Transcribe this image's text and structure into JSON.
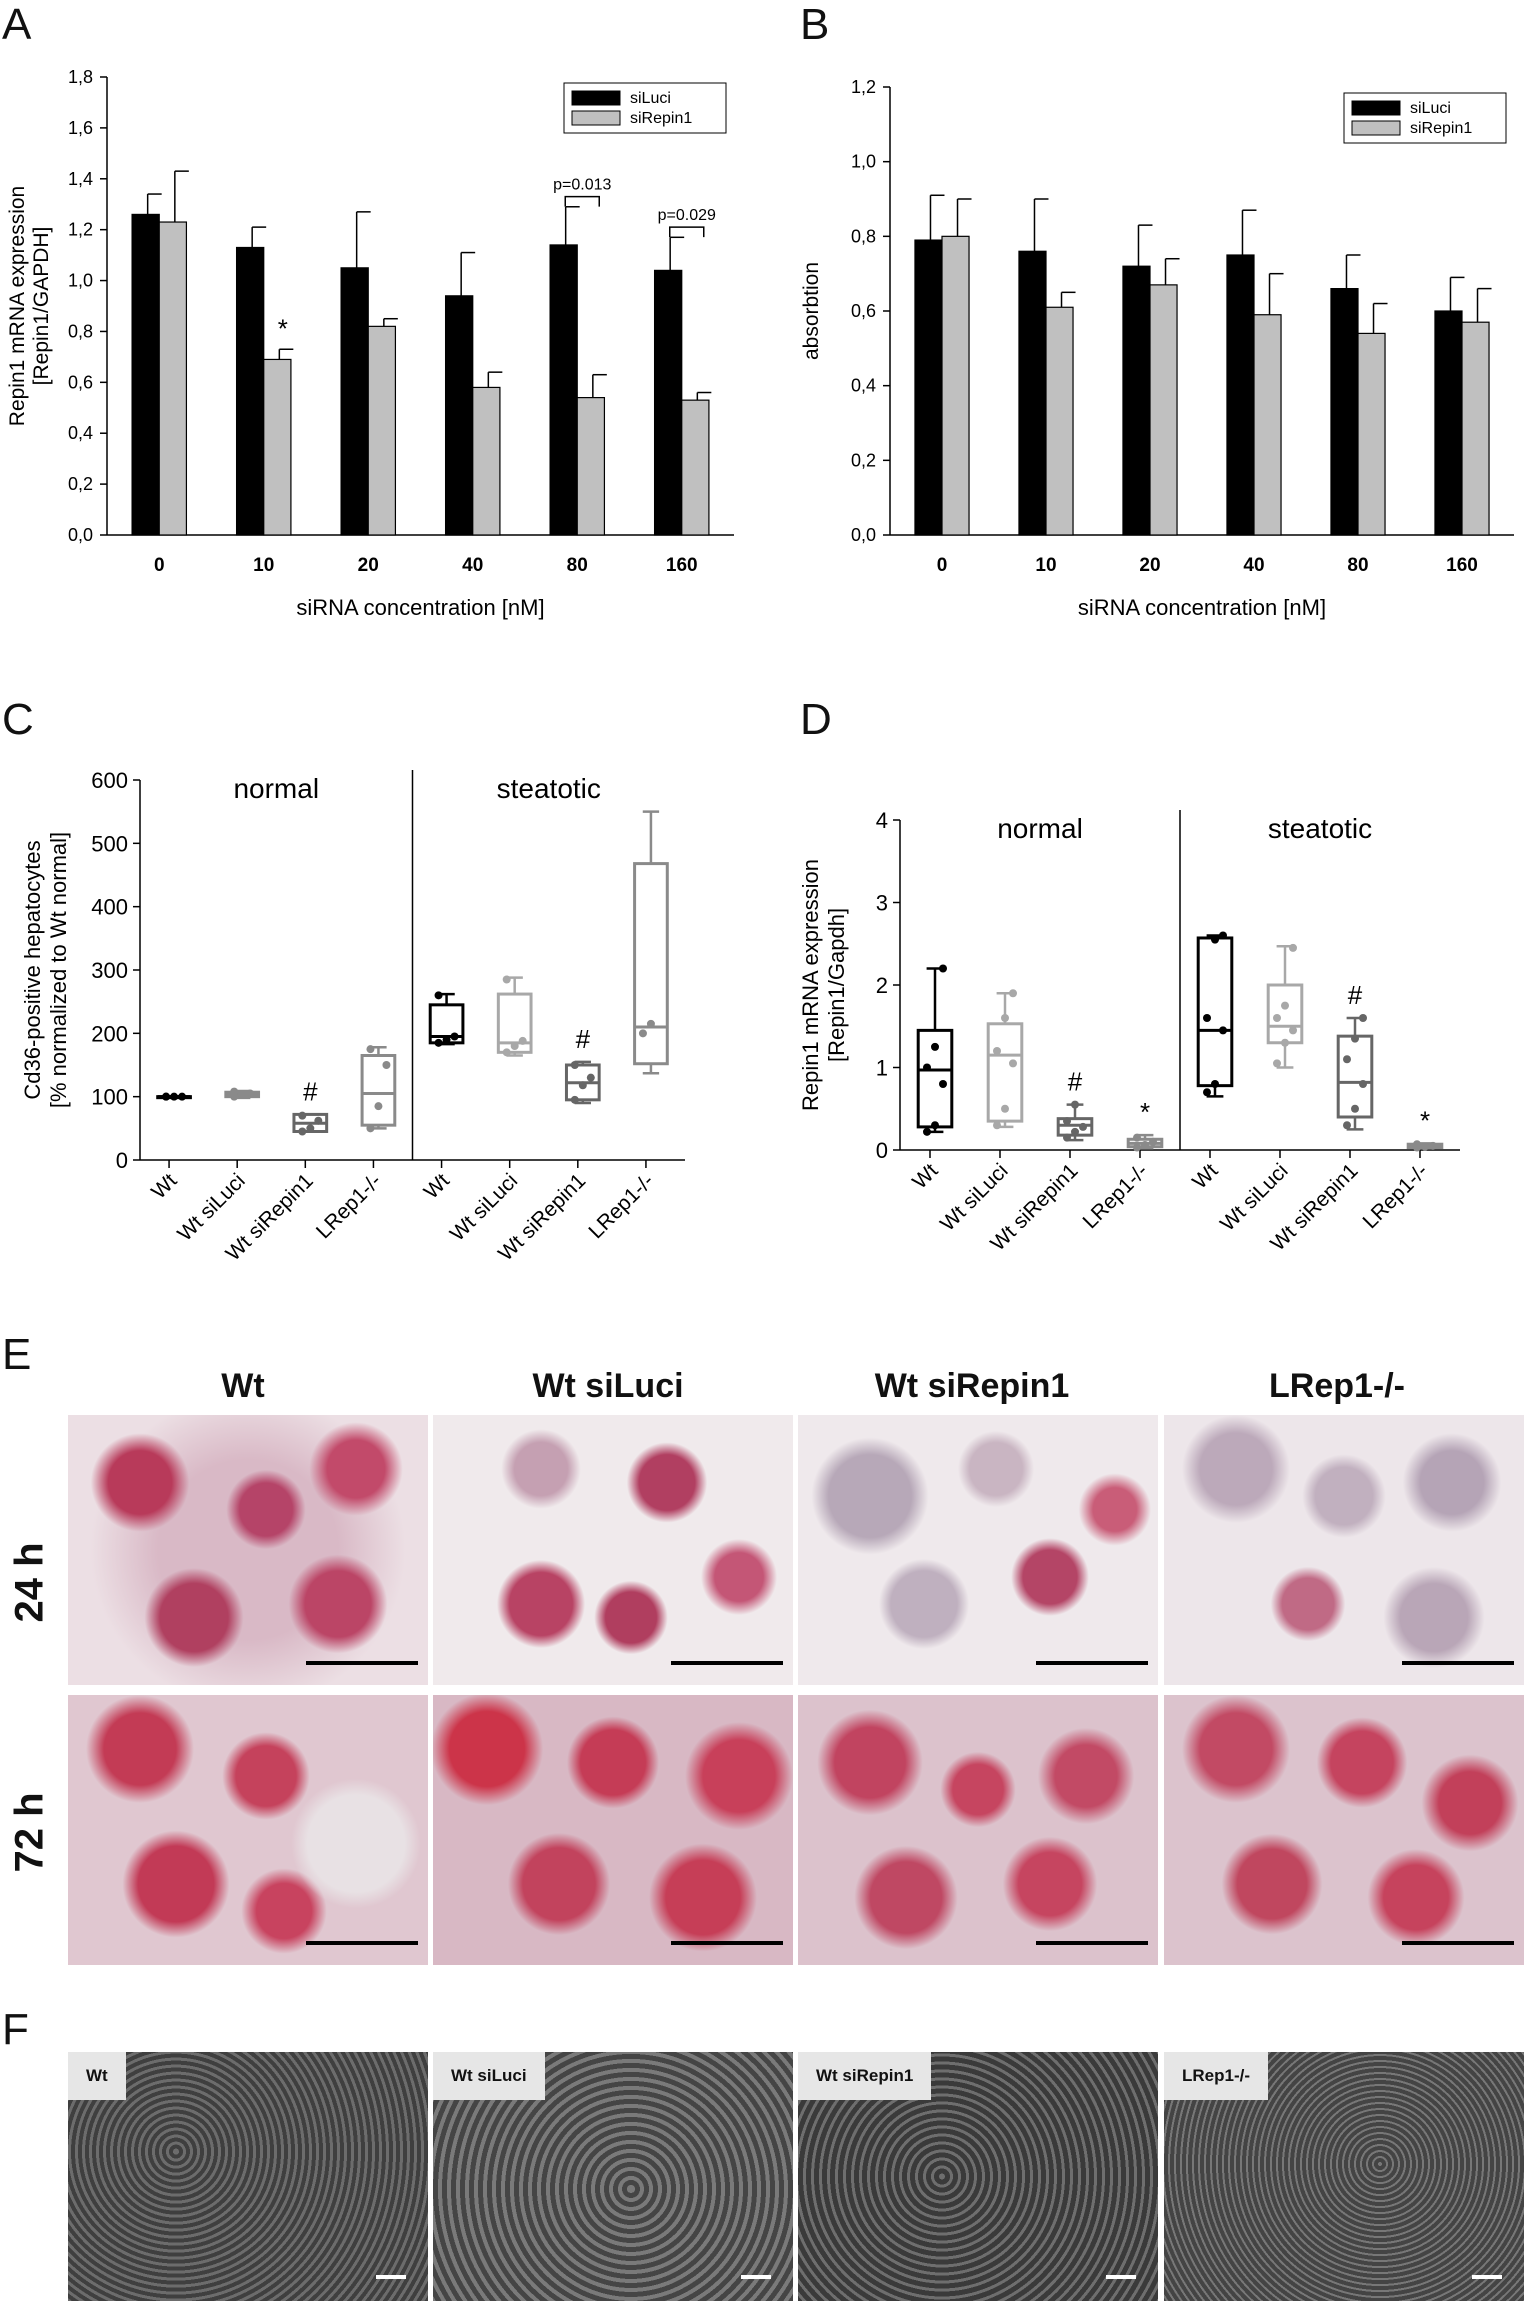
{
  "panel_letters": [
    "A",
    "B",
    "C",
    "D",
    "E",
    "F"
  ],
  "chart_data": [
    {
      "id": "A",
      "type": "bar",
      "categories": [
        "0",
        "10",
        "20",
        "40",
        "80",
        "160"
      ],
      "series": [
        {
          "name": "siLuci",
          "values": [
            1.26,
            1.13,
            1.05,
            0.94,
            1.14,
            1.04
          ],
          "errors": [
            0.08,
            0.08,
            0.22,
            0.17,
            0.15,
            0.13
          ],
          "color": "#000000"
        },
        {
          "name": "siRepin1",
          "values": [
            1.23,
            0.69,
            0.82,
            0.58,
            0.54,
            0.53
          ],
          "errors": [
            0.2,
            0.04,
            0.03,
            0.06,
            0.09,
            0.03
          ],
          "color": "#c0c0c0"
        }
      ],
      "xlabel": "siRNA concentration [nM]",
      "ylabel_lines": [
        "Repin1 mRNA expression",
        "[Repin1/GAPDH]"
      ],
      "ylim": [
        0,
        1.8
      ],
      "yticks": [
        "0,0",
        "0,2",
        "0,4",
        "0,6",
        "0,8",
        "1,0",
        "1,2",
        "1,4",
        "1,6",
        "1,8"
      ],
      "legend": "top-right",
      "annotations": [
        {
          "text": "*",
          "category": "10"
        },
        {
          "text": "p=0.013",
          "category": "80"
        },
        {
          "text": "p=0.029",
          "category": "160"
        }
      ]
    },
    {
      "id": "B",
      "type": "bar",
      "categories": [
        "0",
        "10",
        "20",
        "40",
        "80",
        "160"
      ],
      "series": [
        {
          "name": "siLuci",
          "values": [
            0.79,
            0.76,
            0.72,
            0.75,
            0.66,
            0.6
          ],
          "errors": [
            0.12,
            0.14,
            0.11,
            0.12,
            0.09,
            0.09
          ],
          "color": "#000000"
        },
        {
          "name": "siRepin1",
          "values": [
            0.8,
            0.61,
            0.67,
            0.59,
            0.54,
            0.57
          ],
          "errors": [
            0.1,
            0.04,
            0.07,
            0.11,
            0.08,
            0.09
          ],
          "color": "#c0c0c0"
        }
      ],
      "xlabel": "siRNA concentration [nM]",
      "ylabel_lines": [
        "absorbtion"
      ],
      "ylim": [
        0,
        1.2
      ],
      "yticks": [
        "0,0",
        "0,2",
        "0,4",
        "0,6",
        "0,8",
        "1,0",
        "1,2"
      ],
      "legend": "top-right"
    },
    {
      "id": "C",
      "type": "box",
      "groups": [
        "normal",
        "steatotic"
      ],
      "categories": [
        "Wt",
        "Wt siLuci",
        "Wt siRepin1",
        "LRep1-/-",
        "Wt",
        "Wt siLuci",
        "Wt siRepin1",
        "LRep1-/-"
      ],
      "boxes": [
        {
          "min": 100,
          "q1": 100,
          "median": 100,
          "q3": 100,
          "max": 100,
          "points": [
            100,
            100,
            100,
            100
          ],
          "color": "#000000"
        },
        {
          "min": 98,
          "q1": 100,
          "median": 104,
          "q3": 107,
          "max": 109,
          "points": [
            100,
            103,
            105,
            108
          ],
          "color": "#8a8a8a"
        },
        {
          "min": 45,
          "q1": 45,
          "median": 58,
          "q3": 72,
          "max": 72,
          "points": [
            45,
            50,
            62,
            70
          ],
          "color": "#666666"
        },
        {
          "min": 50,
          "q1": 55,
          "median": 105,
          "q3": 165,
          "max": 178,
          "points": [
            50,
            85,
            150,
            175
          ],
          "color": "#8a8a8a"
        },
        {
          "min": 183,
          "q1": 185,
          "median": 195,
          "q3": 245,
          "max": 262,
          "points": [
            185,
            190,
            195,
            260
          ],
          "color": "#000000"
        },
        {
          "min": 165,
          "q1": 170,
          "median": 185,
          "q3": 262,
          "max": 288,
          "points": [
            170,
            180,
            188,
            285
          ],
          "color": "#a8a8a8"
        },
        {
          "min": 90,
          "q1": 95,
          "median": 122,
          "q3": 150,
          "max": 155,
          "points": [
            95,
            118,
            130,
            150
          ],
          "color": "#666666"
        },
        {
          "min": 137,
          "q1": 152,
          "median": 210,
          "q3": 468,
          "max": 550,
          "points": [
            200,
            215
          ],
          "color": "#8a8a8a"
        }
      ],
      "ylabel_lines": [
        "Cd36-positive hepatocytes",
        "[% normalized to Wt normal]"
      ],
      "ylim": [
        0,
        600
      ],
      "yticks": [
        "0",
        "100",
        "200",
        "300",
        "400",
        "500",
        "600"
      ],
      "annotations": [
        {
          "text": "#",
          "category_index": 2
        },
        {
          "text": "#",
          "category_index": 6
        }
      ]
    },
    {
      "id": "D",
      "type": "box",
      "groups": [
        "normal",
        "steatotic"
      ],
      "categories": [
        "Wt",
        "Wt siLuci",
        "Wt siRepin1",
        "LRep1-/-",
        "Wt",
        "Wt siLuci",
        "Wt siRepin1",
        "LRep1-/-"
      ],
      "boxes": [
        {
          "min": 0.22,
          "q1": 0.28,
          "median": 0.97,
          "q3": 1.45,
          "max": 2.2,
          "points": [
            0.22,
            0.3,
            0.8,
            1.0,
            1.25,
            2.2
          ],
          "color": "#000000"
        },
        {
          "min": 0.28,
          "q1": 0.35,
          "median": 1.15,
          "q3": 1.53,
          "max": 1.9,
          "points": [
            0.3,
            0.5,
            1.05,
            1.2,
            1.6,
            1.9
          ],
          "color": "#a8a8a8"
        },
        {
          "min": 0.12,
          "q1": 0.18,
          "median": 0.3,
          "q3": 0.38,
          "max": 0.55,
          "points": [
            0.15,
            0.22,
            0.28,
            0.35,
            0.55
          ],
          "color": "#666666"
        },
        {
          "min": 0.02,
          "q1": 0.04,
          "median": 0.08,
          "q3": 0.13,
          "max": 0.18,
          "points": [
            0.03,
            0.06,
            0.1,
            0.15
          ],
          "color": "#8a8a8a"
        },
        {
          "min": 0.65,
          "q1": 0.78,
          "median": 1.45,
          "q3": 2.57,
          "max": 2.6,
          "points": [
            0.7,
            0.8,
            1.45,
            1.6,
            2.55,
            2.6
          ],
          "color": "#000000"
        },
        {
          "min": 1.0,
          "q1": 1.3,
          "median": 1.5,
          "q3": 2.0,
          "max": 2.47,
          "points": [
            1.05,
            1.3,
            1.45,
            1.6,
            1.75,
            2.45
          ],
          "color": "#a8a8a8"
        },
        {
          "min": 0.25,
          "q1": 0.4,
          "median": 0.82,
          "q3": 1.38,
          "max": 1.6,
          "points": [
            0.3,
            0.5,
            0.8,
            1.1,
            1.35,
            1.6
          ],
          "color": "#666666"
        },
        {
          "min": 0.02,
          "q1": 0.03,
          "median": 0.05,
          "q3": 0.07,
          "max": 0.08,
          "points": [
            0.03,
            0.04,
            0.05,
            0.07
          ],
          "color": "#8a8a8a"
        }
      ],
      "ylabel_lines": [
        "Repin1 mRNA expression",
        "[Repin1/Gapdh]"
      ],
      "ylim": [
        0,
        4
      ],
      "yticks": [
        "0",
        "1",
        "2",
        "3",
        "4"
      ],
      "annotations": [
        {
          "text": "#",
          "category_index": 2
        },
        {
          "text": "*",
          "category_index": 3
        },
        {
          "text": "#",
          "category_index": 6
        },
        {
          "text": "*",
          "category_index": 7
        }
      ]
    }
  ],
  "panel_e": {
    "columns": [
      "Wt",
      "Wt siLuci",
      "Wt siRepin1",
      "LRep1-/-"
    ],
    "rows": [
      "24 h",
      "72 h"
    ]
  },
  "panel_f": {
    "labels": [
      "Wt",
      "Wt siLuci",
      "Wt siRepin1",
      "LRep1-/-"
    ]
  }
}
